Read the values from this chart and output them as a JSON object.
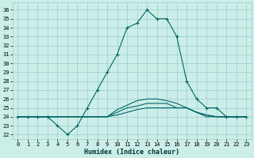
{
  "xlabel": "Humidex (Indice chaleur)",
  "bg_color": "#cceee8",
  "grid_color": "#99cccc",
  "line_color": "#006666",
  "xlim_min": -0.5,
  "xlim_max": 23.5,
  "ylim_min": 21.5,
  "ylim_max": 36.8,
  "yticks": [
    22,
    23,
    24,
    25,
    26,
    27,
    28,
    29,
    30,
    31,
    32,
    33,
    34,
    35,
    36
  ],
  "xticks": [
    0,
    1,
    2,
    3,
    4,
    5,
    6,
    7,
    8,
    9,
    10,
    11,
    12,
    13,
    14,
    15,
    16,
    17,
    18,
    19,
    20,
    21,
    22,
    23
  ],
  "line1_x": [
    0,
    1,
    2,
    3,
    4,
    5,
    6,
    7,
    8,
    9,
    10,
    11,
    12,
    13,
    14,
    15,
    16,
    17,
    18,
    19,
    20,
    21,
    22,
    23
  ],
  "line1_y": [
    24,
    24,
    24,
    24,
    23,
    22,
    23,
    25,
    27,
    29,
    31,
    34,
    34.5,
    36,
    35,
    35,
    33,
    28,
    26,
    25,
    25,
    24,
    24,
    24
  ],
  "line2_x": [
    0,
    1,
    2,
    3,
    4,
    5,
    6,
    7,
    8,
    9,
    10,
    11,
    12,
    13,
    14,
    15,
    16,
    17,
    18,
    19,
    20,
    21,
    22,
    23
  ],
  "line2_y": [
    24,
    24,
    24,
    24,
    24,
    24,
    24,
    24,
    24,
    24,
    24.2,
    24.5,
    24.8,
    25,
    25,
    25,
    25,
    25,
    24.5,
    24.2,
    24,
    24,
    24,
    24
  ],
  "line3_x": [
    0,
    1,
    2,
    3,
    4,
    5,
    6,
    7,
    8,
    9,
    10,
    11,
    12,
    13,
    14,
    15,
    16,
    17,
    18,
    19,
    20,
    21,
    22,
    23
  ],
  "line3_y": [
    24,
    24,
    24,
    24,
    24,
    24,
    24,
    24,
    24,
    24,
    24.5,
    25,
    25.2,
    25.5,
    25.5,
    25.5,
    25,
    25,
    24.5,
    24,
    24,
    24,
    24,
    24
  ],
  "line4_x": [
    0,
    1,
    2,
    3,
    4,
    5,
    6,
    7,
    8,
    9,
    10,
    11,
    12,
    13,
    14,
    15,
    16,
    17,
    18,
    19,
    20,
    21,
    22,
    23
  ],
  "line4_y": [
    24,
    24,
    24,
    24,
    24,
    24,
    24,
    24,
    24,
    24,
    24.8,
    25.3,
    25.8,
    26,
    26,
    25.8,
    25.5,
    25,
    24.5,
    24.2,
    24,
    24,
    24,
    24
  ]
}
